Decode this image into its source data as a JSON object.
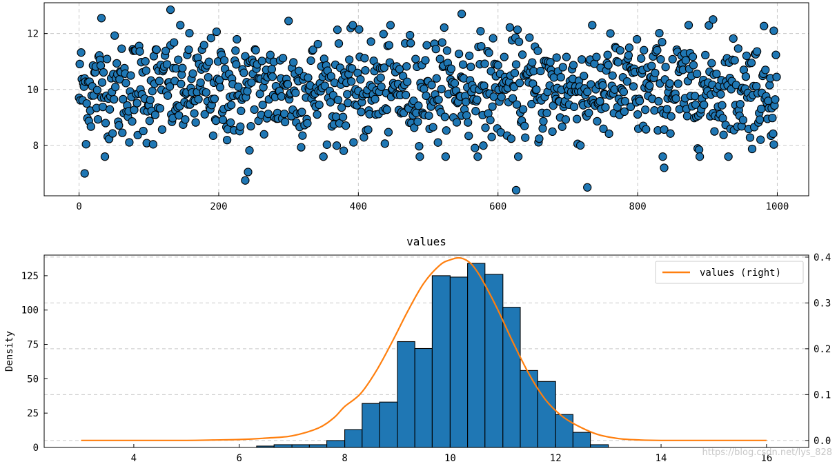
{
  "chart_data": [
    {
      "type": "scatter",
      "title": "",
      "xlabel": "",
      "ylabel": "",
      "xlim": [
        -50,
        1045
      ],
      "ylim": [
        6.2,
        13.1
      ],
      "xticks": [
        0,
        200,
        400,
        600,
        800,
        1000
      ],
      "yticks": [
        8,
        10,
        12
      ],
      "grid": true,
      "point_color": "#1f77b4",
      "n_points": 1000,
      "center": 10,
      "spread": 0.95,
      "outliers": [
        {
          "x": 8,
          "y": 7.0
        },
        {
          "x": 32,
          "y": 12.55
        },
        {
          "x": 131,
          "y": 12.85
        },
        {
          "x": 238,
          "y": 6.75
        },
        {
          "x": 242,
          "y": 7.05
        },
        {
          "x": 300,
          "y": 12.45
        },
        {
          "x": 548,
          "y": 12.7
        },
        {
          "x": 626,
          "y": 6.4
        },
        {
          "x": 728,
          "y": 6.5
        },
        {
          "x": 838,
          "y": 7.2
        },
        {
          "x": 908,
          "y": 12.5
        },
        {
          "x": 995,
          "y": 12.1
        }
      ]
    },
    {
      "type": "bar",
      "title": "values",
      "xlabel": "",
      "ylabel": "Density",
      "xlim": [
        2.3,
        16.8
      ],
      "ylim": [
        0,
        140
      ],
      "xticks": [
        4,
        6,
        8,
        10,
        12,
        14,
        16
      ],
      "yticks": [
        0,
        25,
        50,
        75,
        100,
        125
      ],
      "bar_color": "#1f77b4",
      "bin_edges": [
        6.33,
        6.66,
        7.0,
        7.33,
        7.66,
        8.0,
        8.33,
        8.66,
        9.0,
        9.33,
        9.66,
        10.0,
        10.33,
        10.66,
        11.0,
        11.33,
        11.66,
        12.0,
        12.33,
        12.66,
        13.0
      ],
      "counts": [
        1,
        2,
        2,
        2,
        5,
        13,
        32,
        33,
        77,
        72,
        125,
        124,
        134,
        126,
        102,
        56,
        48,
        24,
        11,
        2
      ],
      "secondary": {
        "type": "line",
        "name": "values (right)",
        "color": "#ff7f0e",
        "ylim": [
          -0.0153,
          0.4044
        ],
        "yticks": [
          0.0,
          0.1,
          0.2,
          0.3,
          0.4
        ],
        "ytick_labels": [
          "0.0",
          "0.1",
          "0.2",
          "0.3",
          "0.4"
        ],
        "x": [
          3.0,
          4.0,
          5.0,
          5.5,
          6.0,
          6.5,
          7.0,
          7.5,
          7.8,
          8.0,
          8.3,
          8.6,
          8.9,
          9.2,
          9.5,
          9.8,
          10.0,
          10.2,
          10.4,
          10.6,
          10.9,
          11.2,
          11.5,
          11.8,
          12.1,
          12.4,
          12.8,
          13.2,
          13.6,
          14.0,
          15.0,
          16.0
        ],
        "y": [
          0.0,
          0.0,
          0.0,
          0.001,
          0.002,
          0.005,
          0.01,
          0.027,
          0.05,
          0.074,
          0.102,
          0.152,
          0.215,
          0.283,
          0.343,
          0.382,
          0.394,
          0.398,
          0.385,
          0.352,
          0.286,
          0.212,
          0.144,
          0.09,
          0.055,
          0.033,
          0.013,
          0.004,
          0.001,
          0.0,
          0.0,
          0.0
        ]
      },
      "legend": {
        "placement": "top-right",
        "label": "values (right)"
      }
    }
  ],
  "watermark": "https://blog.csdn.net/lys_828"
}
